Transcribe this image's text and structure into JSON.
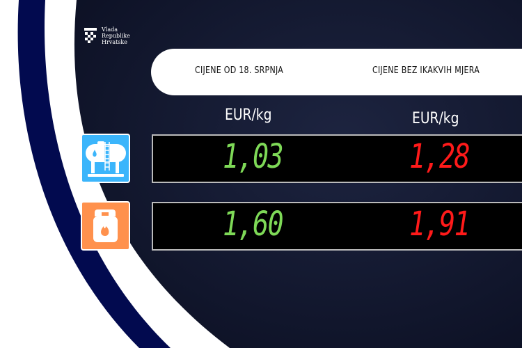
{
  "logo": {
    "lines": [
      "Vlada",
      "Republike",
      "Hrvatske"
    ]
  },
  "header": {
    "col1": "CIJENE OD 18. SRPNJA",
    "col2": "CIJENE BEZ IKAKVIH MJERA"
  },
  "units": {
    "col1": "EUR/kg",
    "col2": "EUR/kg"
  },
  "rows": [
    {
      "icon": "gas-tank-icon",
      "icon_color": "#3bb5fb",
      "price_new": "1,03",
      "price_old": "1,28"
    },
    {
      "icon": "gas-cylinder-icon",
      "icon_color": "#ff914d",
      "price_new": "1,60",
      "price_old": "1,91"
    }
  ],
  "colors": {
    "navy": "#020a4f",
    "background": "#141a33",
    "green": "#7ed957",
    "red": "#ff1a1a"
  }
}
